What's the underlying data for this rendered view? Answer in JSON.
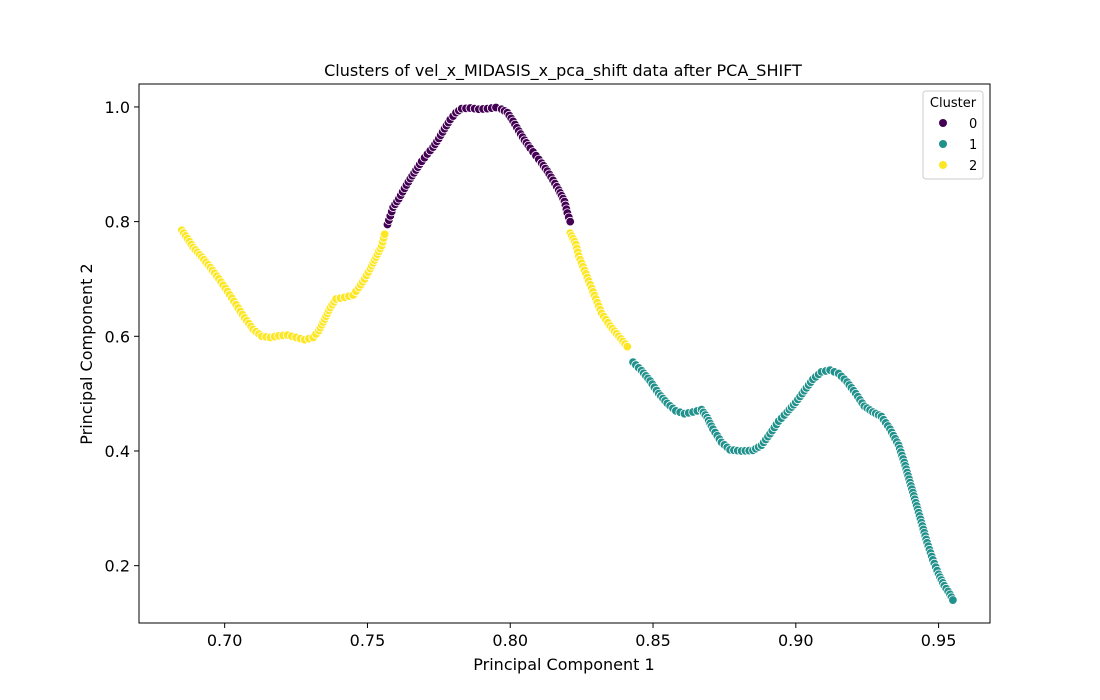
{
  "chart_data": {
    "type": "scatter",
    "title": "Clusters of vel_x_MIDASIS_x_pca_shift data after PCA_SHIFT",
    "xlabel": "Principal Component 1",
    "ylabel": "Principal Component 2",
    "xlim": [
      0.67,
      0.968
    ],
    "ylim": [
      0.1,
      1.04
    ],
    "xticks": [
      "0.70",
      "0.75",
      "0.80",
      "0.85",
      "0.90",
      "0.95"
    ],
    "yticks": [
      "0.2",
      "0.4",
      "0.6",
      "0.8",
      "1.0"
    ],
    "grid": false,
    "legend": {
      "title": "Cluster",
      "placement": "top-right",
      "labels": [
        "0",
        "1",
        "2"
      ]
    },
    "colors": {
      "0": "#440154",
      "1": "#21918c",
      "2": "#fde725"
    },
    "series": [
      {
        "name": "0",
        "points": [
          [
            0.757,
            0.795
          ],
          [
            0.758,
            0.81
          ],
          [
            0.759,
            0.825
          ],
          [
            0.761,
            0.84
          ],
          [
            0.763,
            0.858
          ],
          [
            0.765,
            0.875
          ],
          [
            0.767,
            0.89
          ],
          [
            0.769,
            0.905
          ],
          [
            0.771,
            0.918
          ],
          [
            0.773,
            0.93
          ],
          [
            0.775,
            0.945
          ],
          [
            0.777,
            0.962
          ],
          [
            0.779,
            0.978
          ],
          [
            0.781,
            0.99
          ],
          [
            0.783,
            0.997
          ],
          [
            0.786,
            0.998
          ],
          [
            0.789,
            0.996
          ],
          [
            0.792,
            0.997
          ],
          [
            0.795,
            0.999
          ],
          [
            0.797,
            0.996
          ],
          [
            0.799,
            0.99
          ],
          [
            0.801,
            0.975
          ],
          [
            0.803,
            0.958
          ],
          [
            0.805,
            0.942
          ],
          [
            0.807,
            0.928
          ],
          [
            0.809,
            0.915
          ],
          [
            0.811,
            0.902
          ],
          [
            0.813,
            0.888
          ],
          [
            0.815,
            0.872
          ],
          [
            0.817,
            0.855
          ],
          [
            0.819,
            0.835
          ],
          [
            0.82,
            0.815
          ],
          [
            0.821,
            0.8
          ]
        ]
      },
      {
        "name": "1",
        "points": [
          [
            0.843,
            0.555
          ],
          [
            0.846,
            0.54
          ],
          [
            0.849,
            0.522
          ],
          [
            0.852,
            0.5
          ],
          [
            0.855,
            0.483
          ],
          [
            0.858,
            0.47
          ],
          [
            0.861,
            0.465
          ],
          [
            0.864,
            0.468
          ],
          [
            0.867,
            0.472
          ],
          [
            0.869,
            0.458
          ],
          [
            0.871,
            0.438
          ],
          [
            0.874,
            0.415
          ],
          [
            0.877,
            0.402
          ],
          [
            0.881,
            0.4
          ],
          [
            0.885,
            0.401
          ],
          [
            0.888,
            0.41
          ],
          [
            0.891,
            0.43
          ],
          [
            0.894,
            0.452
          ],
          [
            0.897,
            0.468
          ],
          [
            0.9,
            0.485
          ],
          [
            0.903,
            0.505
          ],
          [
            0.906,
            0.525
          ],
          [
            0.909,
            0.538
          ],
          [
            0.912,
            0.541
          ],
          [
            0.915,
            0.535
          ],
          [
            0.918,
            0.52
          ],
          [
            0.921,
            0.5
          ],
          [
            0.924,
            0.478
          ],
          [
            0.927,
            0.468
          ],
          [
            0.93,
            0.46
          ],
          [
            0.933,
            0.438
          ],
          [
            0.936,
            0.41
          ],
          [
            0.938,
            0.38
          ],
          [
            0.94,
            0.345
          ],
          [
            0.942,
            0.31
          ],
          [
            0.944,
            0.275
          ],
          [
            0.946,
            0.24
          ],
          [
            0.948,
            0.21
          ],
          [
            0.95,
            0.185
          ],
          [
            0.952,
            0.165
          ],
          [
            0.954,
            0.15
          ],
          [
            0.955,
            0.14
          ]
        ]
      },
      {
        "name": "2",
        "points": [
          [
            0.685,
            0.785
          ],
          [
            0.687,
            0.77
          ],
          [
            0.689,
            0.755
          ],
          [
            0.692,
            0.738
          ],
          [
            0.695,
            0.72
          ],
          [
            0.698,
            0.7
          ],
          [
            0.701,
            0.678
          ],
          [
            0.704,
            0.655
          ],
          [
            0.707,
            0.632
          ],
          [
            0.71,
            0.612
          ],
          [
            0.713,
            0.6
          ],
          [
            0.716,
            0.598
          ],
          [
            0.719,
            0.601
          ],
          [
            0.722,
            0.602
          ],
          [
            0.725,
            0.598
          ],
          [
            0.728,
            0.594
          ],
          [
            0.731,
            0.598
          ],
          [
            0.733,
            0.61
          ],
          [
            0.735,
            0.63
          ],
          [
            0.737,
            0.65
          ],
          [
            0.739,
            0.665
          ],
          [
            0.742,
            0.668
          ],
          [
            0.745,
            0.672
          ],
          [
            0.747,
            0.685
          ],
          [
            0.749,
            0.7
          ],
          [
            0.751,
            0.718
          ],
          [
            0.753,
            0.738
          ],
          [
            0.755,
            0.758
          ],
          [
            0.756,
            0.778
          ],
          [
            0.821,
            0.78
          ],
          [
            0.823,
            0.76
          ],
          [
            0.824,
            0.74
          ],
          [
            0.826,
            0.715
          ],
          [
            0.828,
            0.69
          ],
          [
            0.83,
            0.665
          ],
          [
            0.832,
            0.64
          ],
          [
            0.835,
            0.618
          ],
          [
            0.838,
            0.6
          ],
          [
            0.841,
            0.582
          ]
        ]
      }
    ]
  }
}
